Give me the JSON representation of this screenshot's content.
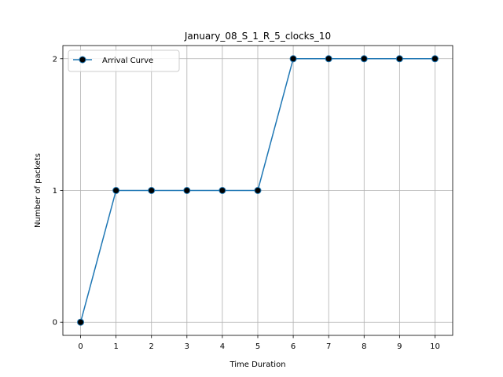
{
  "chart_data": {
    "type": "line",
    "title": "January_08_S_1_R_5_clocks_10",
    "xlabel": "Time Duration",
    "ylabel": "Number of packets",
    "x": [
      0,
      1,
      2,
      3,
      4,
      5,
      6,
      7,
      8,
      9,
      10
    ],
    "series": [
      {
        "name": "Arrival Curve",
        "values": [
          0,
          1,
          1,
          1,
          1,
          1,
          2,
          2,
          2,
          2,
          2
        ],
        "color": "#1f77b4",
        "marker": "circle",
        "marker_face_color": "#000000"
      }
    ],
    "xticks": [
      "0",
      "1",
      "2",
      "3",
      "4",
      "5",
      "6",
      "7",
      "8",
      "9",
      "10"
    ],
    "yticks": [
      "0",
      "1",
      "2"
    ],
    "xlim": [
      -0.5,
      10.5
    ],
    "ylim": [
      -0.1,
      2.1
    ],
    "grid": true,
    "grid_color": "#b0b0b0",
    "legend_position": "upper-left"
  }
}
